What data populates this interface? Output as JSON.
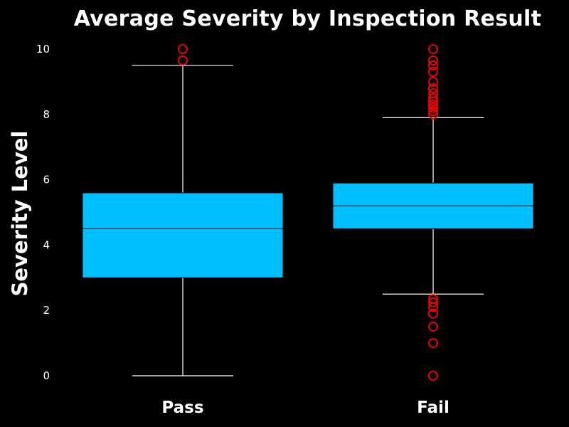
{
  "chart_data": {
    "type": "box",
    "title": "Average Severity by Inspection Result",
    "ylabel": "Severity Level",
    "xlabel": "",
    "ylim": [
      -0.25,
      10.3
    ],
    "yticks": [
      0,
      2,
      4,
      6,
      8,
      10
    ],
    "grid": false,
    "colors": {
      "background": "#000000",
      "box": "#00bfff",
      "whisker": "#ffffff",
      "outlier": "#ff0000",
      "text": "#ffffff"
    },
    "groups": [
      {
        "category": "Pass",
        "q1": 3.0,
        "median": 4.5,
        "q3": 5.6,
        "whisker_low": 0.0,
        "whisker_high": 9.5,
        "outliers": [
          10.0,
          9.65
        ]
      },
      {
        "category": "Fail",
        "q1": 4.5,
        "median": 5.2,
        "q3": 5.9,
        "whisker_low": 2.5,
        "whisker_high": 7.9,
        "outliers": [
          10.0,
          9.65,
          9.5,
          9.3,
          9.0,
          8.8,
          8.65,
          8.5,
          8.4,
          8.3,
          8.2,
          8.1,
          8.0,
          2.35,
          2.25,
          2.1,
          1.9,
          1.5,
          1.0,
          0.0
        ]
      }
    ]
  }
}
